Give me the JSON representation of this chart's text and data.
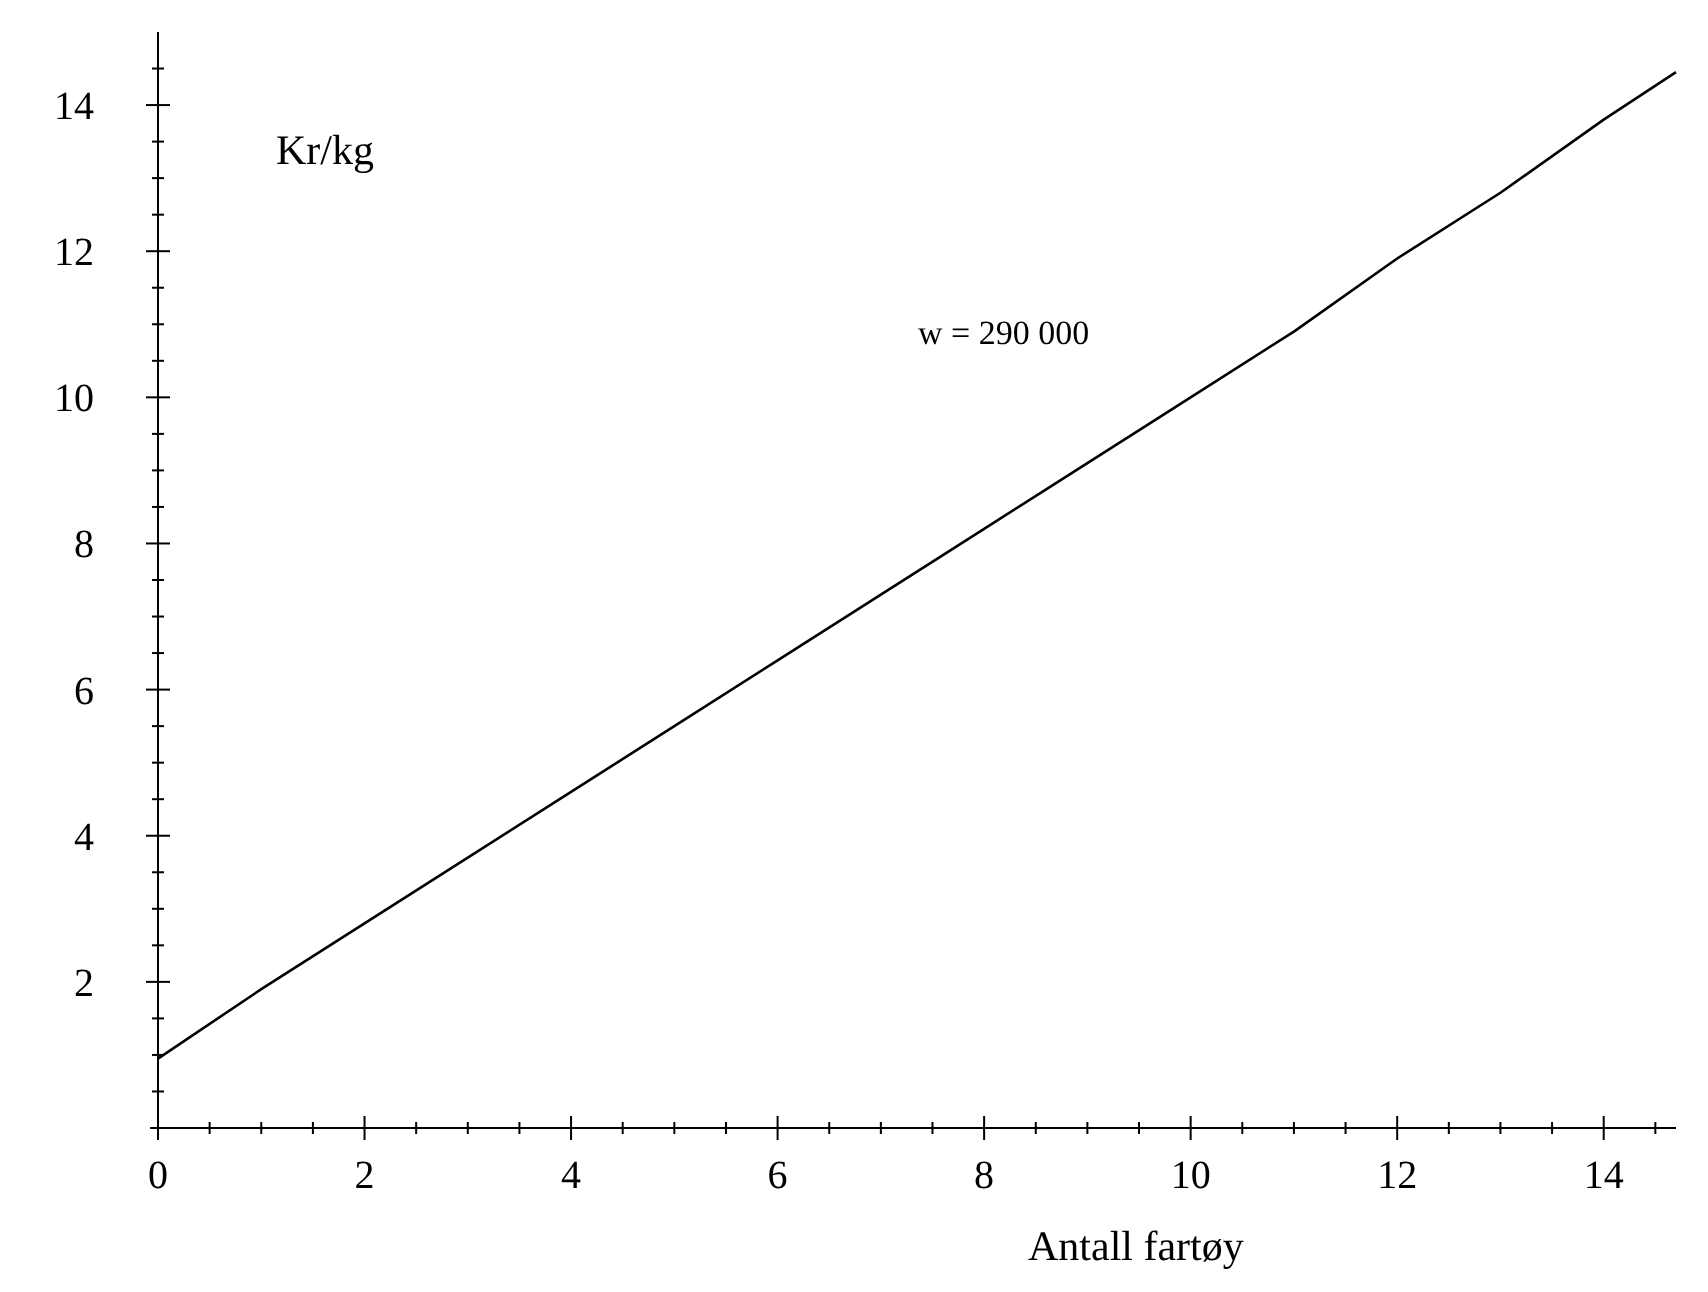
{
  "chart_data": {
    "type": "line",
    "xlabel": "Antall fartøy",
    "ylabel": "Kr/kg",
    "annotations": [
      "w = 290 000"
    ],
    "x": [
      0,
      1,
      2,
      3,
      4,
      5,
      6,
      7,
      8,
      9,
      10,
      11,
      12,
      13,
      14,
      14.7
    ],
    "series": [
      {
        "color": "#000000",
        "values": [
          0.95,
          1.9,
          2.8,
          3.7,
          4.6,
          5.5,
          6.4,
          7.3,
          8.2,
          9.1,
          10.0,
          10.9,
          11.9,
          12.8,
          13.8,
          14.45
        ]
      }
    ],
    "xlim": [
      0,
      14.7
    ],
    "ylim": [
      0,
      15
    ],
    "xticks": [
      0,
      {
        "value": 0.5,
        "label": null
      },
      {
        "value": 1,
        "label": null
      },
      {
        "value": 1.5,
        "label": null
      },
      2,
      {
        "value": 2.5,
        "label": null
      },
      {
        "value": 3,
        "label": null
      },
      {
        "value": 3.5,
        "label": null
      },
      4,
      {
        "value": 4.5,
        "label": null
      },
      {
        "value": 5,
        "label": null
      },
      {
        "value": 5.5,
        "label": null
      },
      6,
      {
        "value": 6.5,
        "label": null
      },
      {
        "value": 7,
        "label": null
      },
      {
        "value": 7.5,
        "label": null
      },
      8,
      {
        "value": 8.5,
        "label": null
      },
      {
        "value": 9,
        "label": null
      },
      {
        "value": 9.5,
        "label": null
      },
      10,
      {
        "value": 10.5,
        "label": null
      },
      {
        "value": 11,
        "label": null
      },
      {
        "value": 11.5,
        "label": null
      },
      12,
      {
        "value": 12.5,
        "label": null
      },
      {
        "value": 13,
        "label": null
      },
      {
        "value": 13.5,
        "label": null
      },
      14,
      {
        "value": 14.5,
        "label": null
      }
    ],
    "yticks": [
      {
        "value": 0.5,
        "label": null
      },
      {
        "value": 1,
        "label": null
      },
      {
        "value": 1.5,
        "label": null
      },
      2,
      {
        "value": 2.5,
        "label": null
      },
      {
        "value": 3,
        "label": null
      },
      {
        "value": 3.5,
        "label": null
      },
      4,
      {
        "value": 4.5,
        "label": null
      },
      {
        "value": 5,
        "label": null
      },
      {
        "value": 5.5,
        "label": null
      },
      6,
      {
        "value": 6.5,
        "label": null
      },
      {
        "value": 7,
        "label": null
      },
      {
        "value": 7.5,
        "label": null
      },
      8,
      {
        "value": 8.5,
        "label": null
      },
      {
        "value": 9,
        "label": null
      },
      {
        "value": 9.5,
        "label": null
      },
      10,
      {
        "value": 10.5,
        "label": null
      },
      {
        "value": 11,
        "label": null
      },
      {
        "value": 11.5,
        "label": null
      },
      12,
      {
        "value": 12.5,
        "label": null
      },
      {
        "value": 13,
        "label": null
      },
      {
        "value": 13.5,
        "label": null
      },
      14,
      {
        "value": 14.5,
        "label": null
      }
    ],
    "grid": false,
    "marker": "none",
    "line_style": "solid"
  }
}
